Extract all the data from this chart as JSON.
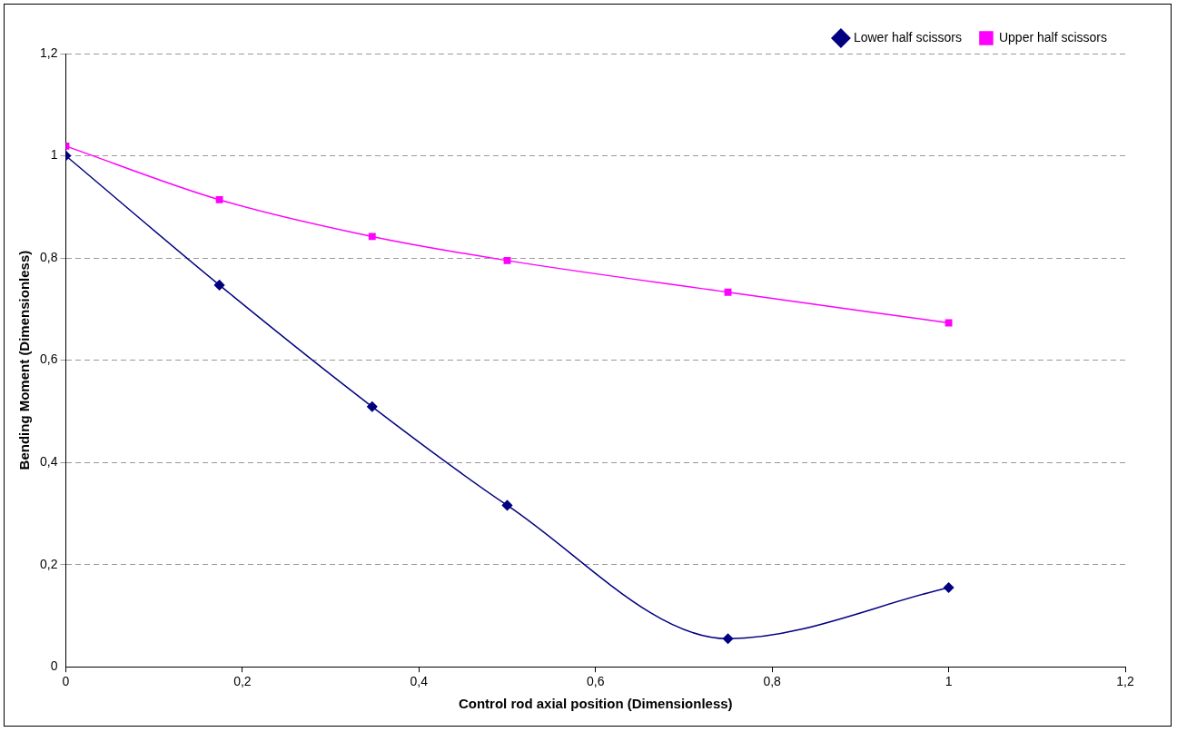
{
  "chart_data": {
    "type": "line",
    "xlabel": "Control rod axial position (Dimensionless)",
    "ylabel": "Bending Moment (Dimensionless)",
    "x": [
      0,
      0.174,
      0.347,
      0.5,
      0.75,
      1
    ],
    "series": [
      {
        "name": "Lower half scissors",
        "color": "#000080",
        "marker": "diamond",
        "values": [
          1,
          0.747,
          0.509,
          0.316,
          0.055,
          0.155
        ]
      },
      {
        "name": "Upper half scissors",
        "color": "#ff00ff",
        "marker": "square",
        "values": [
          1.019,
          0.914,
          0.842,
          0.795,
          0.733,
          0.673
        ]
      }
    ],
    "xlim": [
      0,
      1.2
    ],
    "xticks": [
      0,
      {
        "value": 0.2,
        "label": "0,2"
      },
      {
        "value": 0.4,
        "label": "0,4"
      },
      {
        "value": 0.6,
        "label": "0,6"
      },
      {
        "value": 0.8,
        "label": "0,8"
      },
      1,
      {
        "value": 1.2,
        "label": "1,2"
      }
    ],
    "ylim": [
      0,
      1.2
    ],
    "yticks": [
      0,
      {
        "value": 0.2,
        "label": "0,2"
      },
      {
        "value": 0.4,
        "label": "0,4"
      },
      {
        "value": 0.6,
        "label": "0,6"
      },
      {
        "value": 0.8,
        "label": "0,8"
      },
      1,
      {
        "value": 1.2,
        "label": "1,2"
      }
    ],
    "grid": "y",
    "legend": "top right",
    "line_style": "solid"
  }
}
